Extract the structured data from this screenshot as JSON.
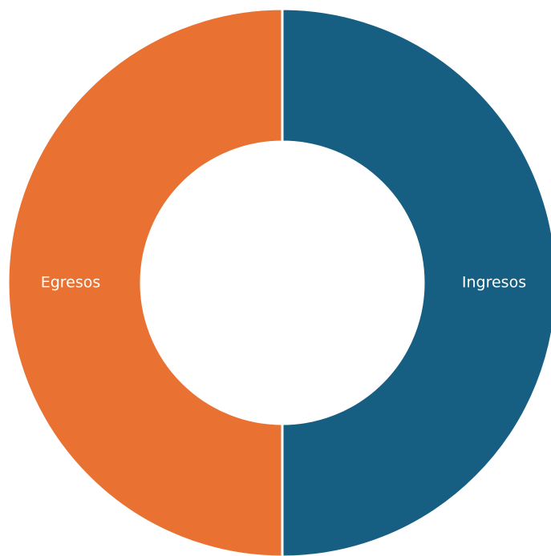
{
  "chart_data": {
    "type": "pie",
    "variant": "donut",
    "title": "",
    "categories": [
      "Ingresos",
      "Egresos"
    ],
    "values": [
      50,
      50
    ],
    "colors": [
      "#175F82",
      "#E97132"
    ],
    "legend": "none",
    "data_labels": "category names inside slices"
  }
}
